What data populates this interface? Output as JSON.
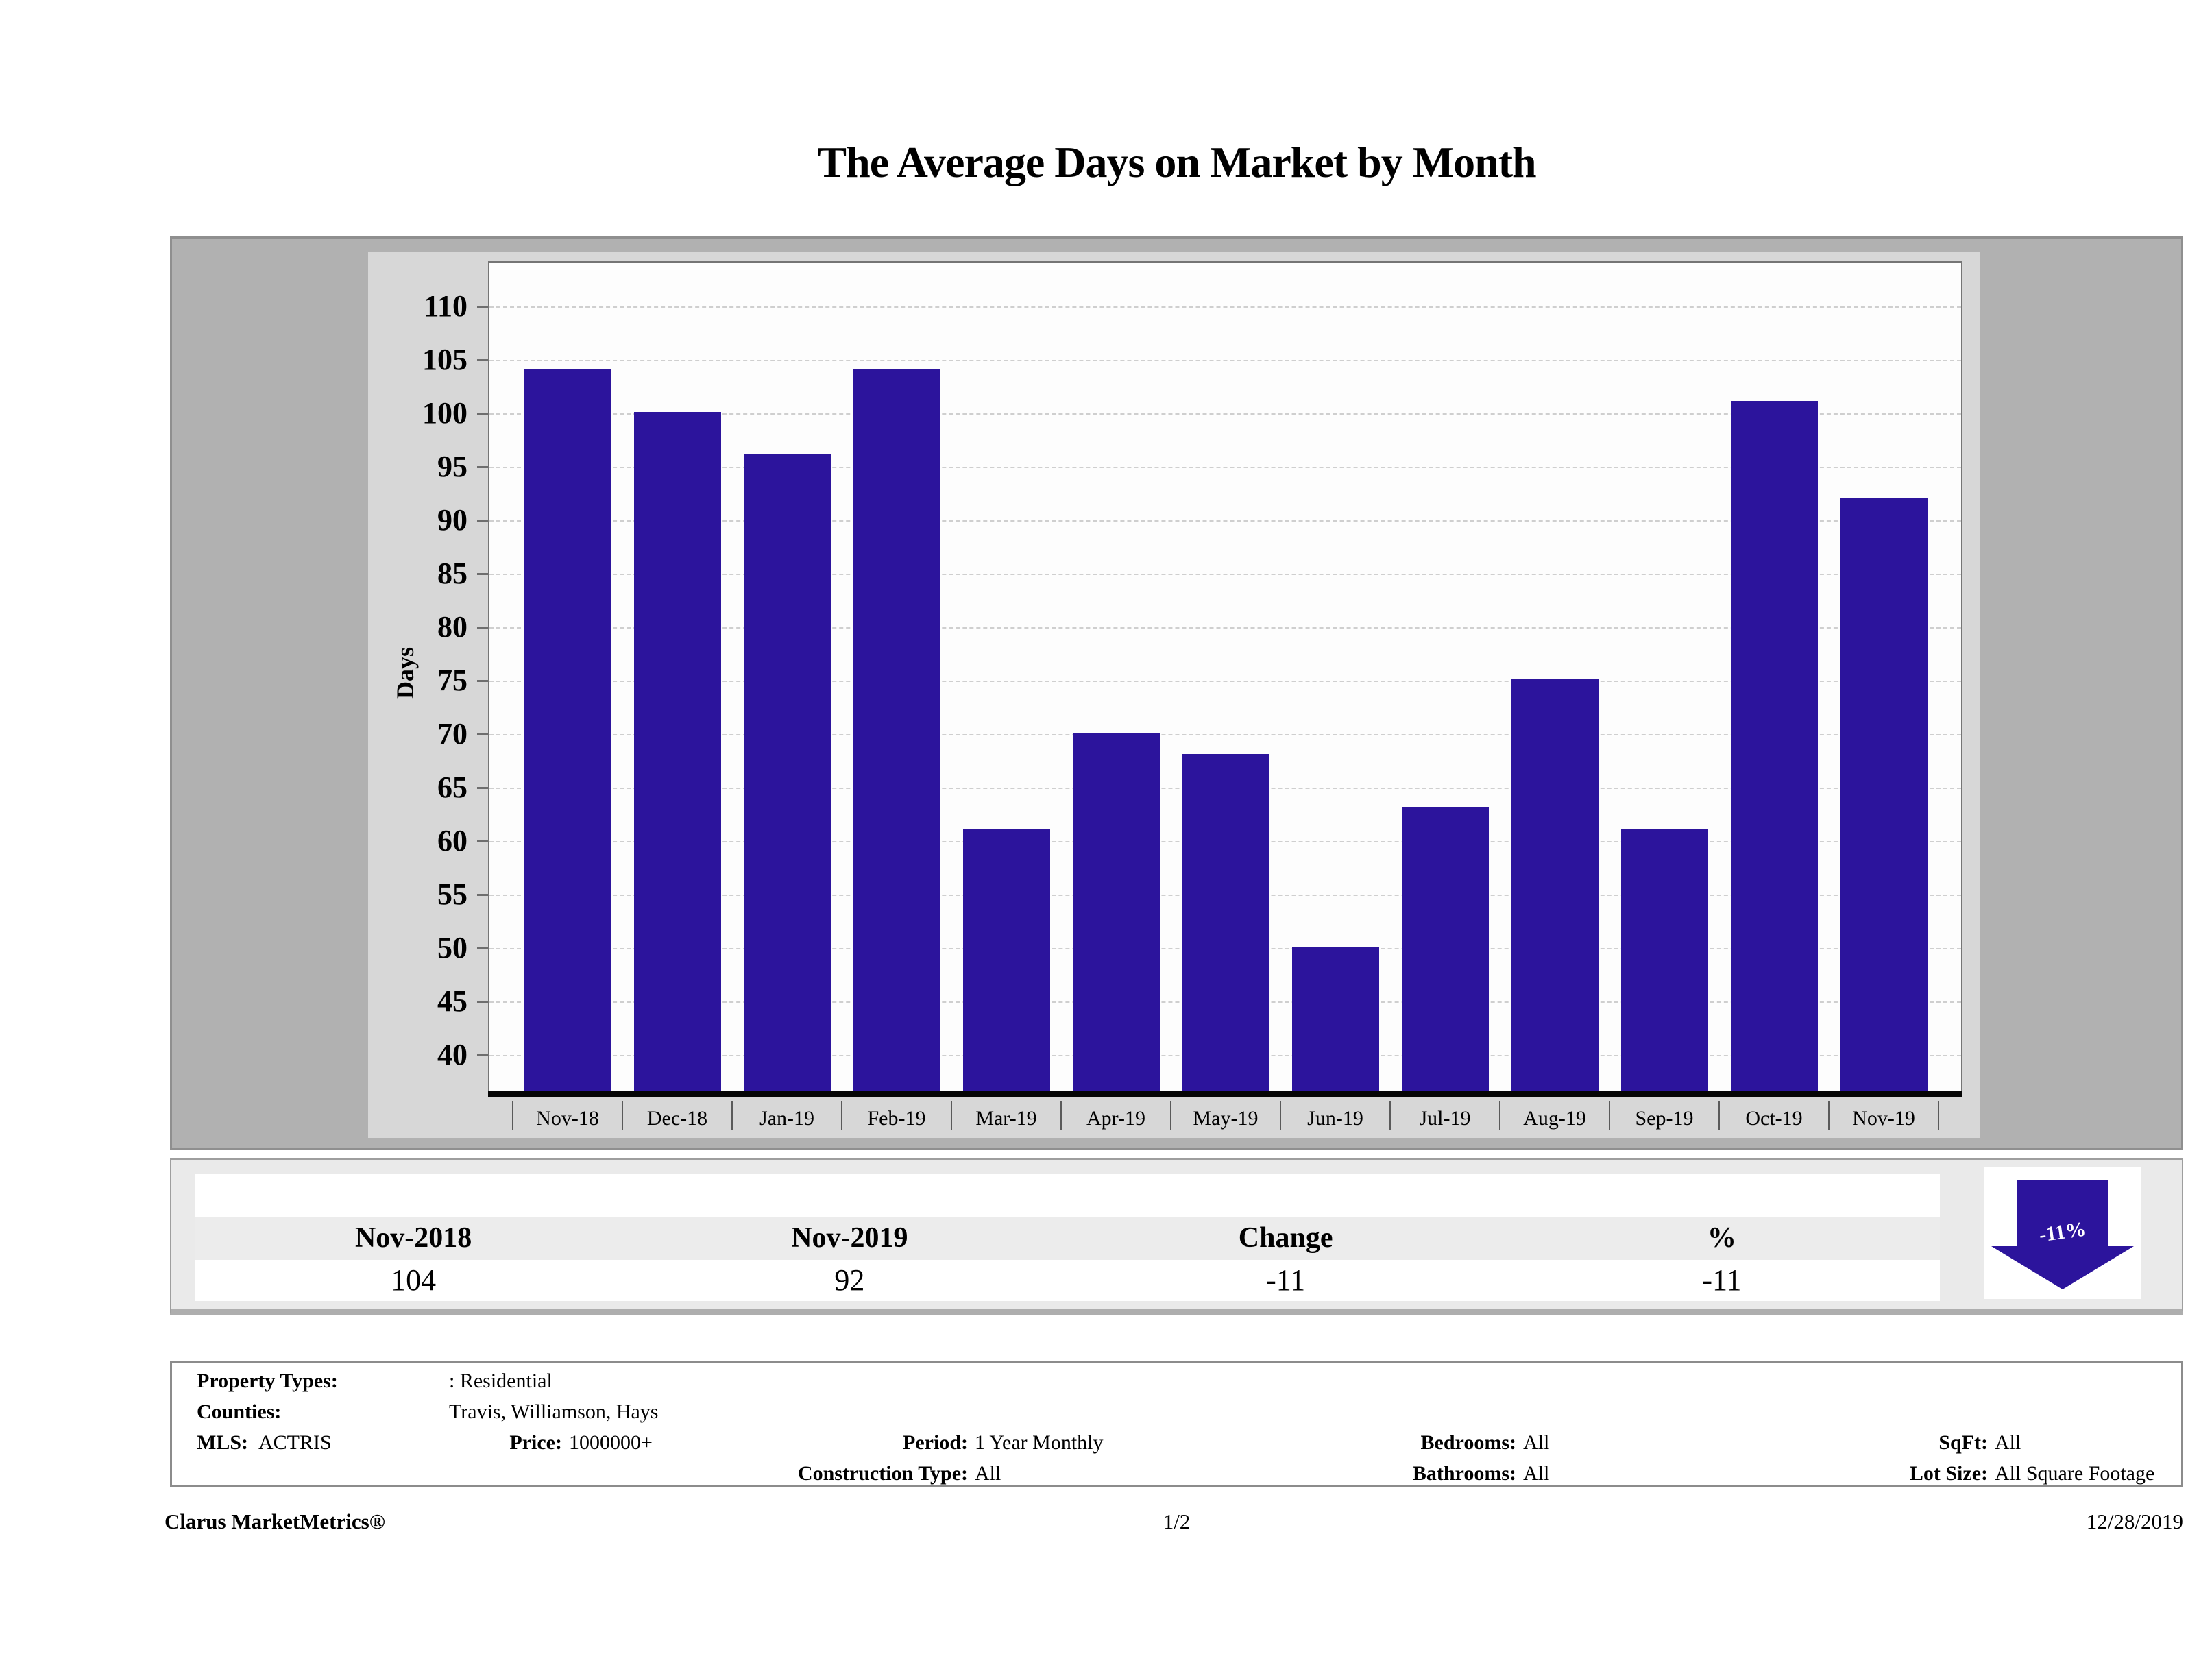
{
  "title": "The Average Days on Market by Month",
  "chart_data": {
    "type": "bar",
    "title": "The Average Days on Market by Month",
    "xlabel": "",
    "ylabel": "Days",
    "categories": [
      "Nov-18",
      "Dec-18",
      "Jan-19",
      "Feb-19",
      "Mar-19",
      "Apr-19",
      "May-19",
      "Jun-19",
      "Jul-19",
      "Aug-19",
      "Sep-19",
      "Oct-19",
      "Nov-19"
    ],
    "values": [
      104,
      100,
      96,
      104,
      61,
      70,
      68,
      50,
      63,
      75,
      61,
      101,
      92
    ],
    "yticks": [
      110,
      105,
      100,
      95,
      90,
      85,
      80,
      75,
      70,
      65,
      60,
      55,
      50,
      45,
      40
    ],
    "ylim": [
      40,
      110
    ],
    "grid": true,
    "legend_position": "none",
    "bar_color": "#2c149c"
  },
  "summary": {
    "columns": [
      "Nov-2018",
      "Nov-2019",
      "Change",
      "%"
    ],
    "values": [
      "104",
      "92",
      "-11",
      "-11"
    ],
    "arrow": {
      "label": "-11%",
      "direction": "down",
      "color": "#2c149c"
    }
  },
  "filters": {
    "property_types_label": "Property Types:",
    "property_types_value": ": Residential",
    "counties_label": "Counties:",
    "counties_value": "Travis, Williamson, Hays",
    "mls_label": "MLS:",
    "mls_value": "ACTRIS",
    "price_label": "Price:",
    "price_value": "1000000+",
    "period_label": "Period:",
    "period_value": "1 Year Monthly",
    "construction_label": "Construction Type:",
    "construction_value": "All",
    "bedrooms_label": "Bedrooms:",
    "bedrooms_value": "All",
    "bathrooms_label": "Bathrooms:",
    "bathrooms_value": "All",
    "sqft_label": "SqFt:",
    "sqft_value": "All",
    "lot_size_label": "Lot Size:",
    "lot_size_value": "All Square Footage"
  },
  "footer": {
    "brand": "Clarus MarketMetrics®",
    "page": "1/2",
    "date": "12/28/2019"
  },
  "colors": {
    "bar": "#2c149c",
    "chart_outer_bg": "#b1b1b1",
    "chart_panel_bg": "#d7d7d7",
    "plot_bg": "#fdfdfd",
    "summary_panel_bg": "#eaeaea",
    "header_row_bg": "#ececec",
    "gridline": "#cfcfcf"
  }
}
